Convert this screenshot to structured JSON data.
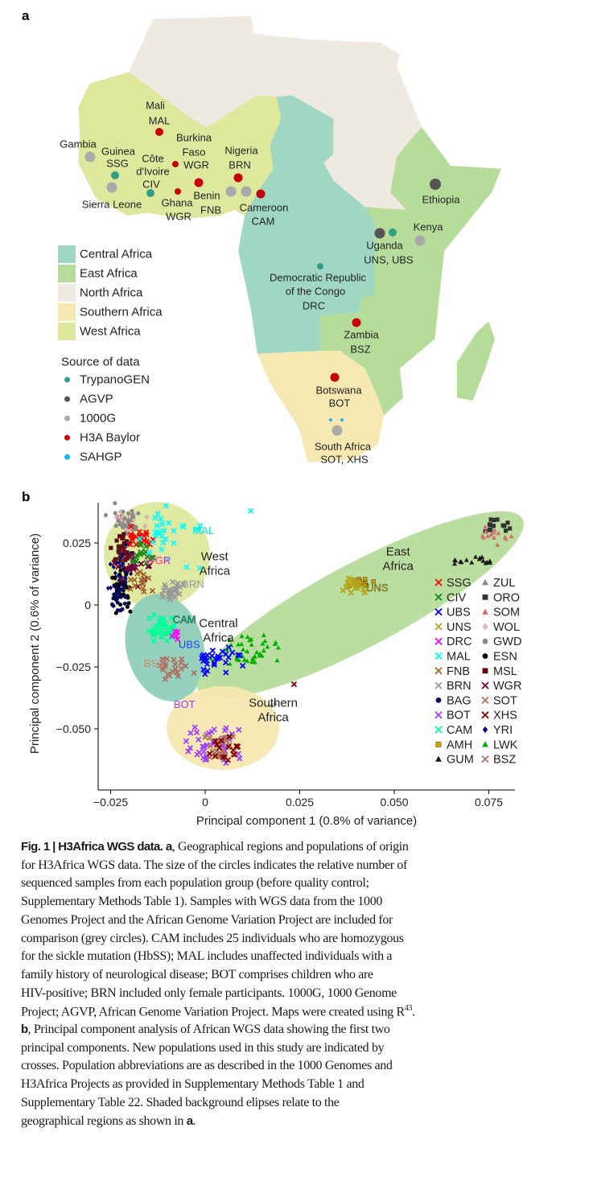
{
  "panel_a": {
    "label": "a",
    "map_labels": [
      "Mali",
      "MAL",
      "Burkina",
      "Faso",
      "WGR",
      "Nigeria",
      "BRN",
      "Gambia",
      "Guinea",
      "SSG",
      "Côte",
      "d'Ivoire",
      "CIV",
      "Sierra Leone",
      "Ghana",
      "WGR",
      "Benin",
      "FNB",
      "Cameroon",
      "CAM",
      "Ethiopia",
      "Kenya",
      "Uganda",
      "UNS, UBS",
      "Democratic Republic",
      "of the Congo",
      "DRC",
      "Zambia",
      "BSZ",
      "Botswana",
      "BOT",
      "South Africa",
      "SOT, XHS"
    ],
    "regions": [
      {
        "label": "Central Africa",
        "color": "#9fd7c3"
      },
      {
        "label": "East Africa",
        "color": "#b6dc9a"
      },
      {
        "label": "North Africa",
        "color": "#eeeae1"
      },
      {
        "label": "Southern Africa",
        "color": "#f5e8b1"
      },
      {
        "label": "West Africa",
        "color": "#dee89c"
      }
    ],
    "source_title": "Source of data",
    "sources": [
      {
        "label": "TrypanoGEN",
        "color": "#2e9e86"
      },
      {
        "label": "AGVP",
        "color": "#555555"
      },
      {
        "label": "1000G",
        "color": "#a9a9a9"
      },
      {
        "label": "H3A Baylor",
        "color": "#c8000a"
      },
      {
        "label": "SAHGP",
        "color": "#19b4f0"
      }
    ]
  },
  "panel_b": {
    "label": "b",
    "chart_data": {
      "type": "scatter",
      "xlabel": "Principal component 1 (0.8% of variance)",
      "ylabel": "Principal component 2 (0.6% of variance)",
      "xlim": [
        -0.028,
        0.083
      ],
      "ylim": [
        -0.072,
        0.04
      ],
      "xticks": [
        {
          "v": -0.025,
          "t": "−0.025"
        },
        {
          "v": 0,
          "t": "0"
        },
        {
          "v": 0.025,
          "t": "0.025"
        },
        {
          "v": 0.05,
          "t": "0.050"
        },
        {
          "v": 0.075,
          "t": "0.075"
        }
      ],
      "yticks": [
        {
          "v": 0.025,
          "t": "0.025"
        },
        {
          "v": 0,
          "t": "0"
        },
        {
          "v": -0.025,
          "t": "−0.025"
        },
        {
          "v": -0.05,
          "t": "−0.050"
        }
      ],
      "grid": false,
      "legend_position": "right",
      "region_labels": [
        {
          "lines": [
            "West",
            "Africa"
          ],
          "x": 0.0025,
          "y": 0.018,
          "color": "#a8d878"
        },
        {
          "lines": [
            "East",
            "Africa"
          ],
          "x": 0.051,
          "y": 0.02,
          "color": "#a8d878"
        },
        {
          "lines": [
            "Central",
            "Africa"
          ],
          "x": 0.0035,
          "y": -0.009,
          "color": "#7cc5b0"
        },
        {
          "lines": [
            "Southern",
            "Africa"
          ],
          "x": 0.018,
          "y": -0.041,
          "color": "#f3e39a"
        }
      ],
      "point_labels": [
        {
          "text": "MAL",
          "x": -0.0005,
          "y": 0.0285,
          "color": "#00e5e5"
        },
        {
          "text": "WGR",
          "x": -0.0125,
          "y": 0.0165,
          "color": "#ff2a9a"
        },
        {
          "text": "BRN",
          "x": -0.0032,
          "y": 0.007,
          "color": "#999999"
        },
        {
          "text": "CAM",
          "x": -0.0055,
          "y": -0.0073,
          "color": "#00d080"
        },
        {
          "text": "UBS",
          "x": -0.0042,
          "y": -0.0173,
          "color": "#2040ff"
        },
        {
          "text": "BSZ",
          "x": -0.0135,
          "y": -0.025,
          "color": "#c08a70"
        },
        {
          "text": "BOT",
          "x": -0.0055,
          "y": -0.0415,
          "color": "#a040ff"
        },
        {
          "text": "UNS",
          "x": 0.0455,
          "y": 0.0055,
          "color": "#d4c000"
        }
      ],
      "series": [
        {
          "name": "SSG",
          "marker": "x",
          "color": "#ff0000",
          "cx": -0.017,
          "cy": 0.027,
          "sx": 0.0018,
          "sy": 0.0018,
          "n": 22
        },
        {
          "name": "CIV",
          "marker": "x",
          "color": "#1a8a1a",
          "cx": -0.0165,
          "cy": 0.02,
          "sx": 0.0018,
          "sy": 0.002,
          "n": 16
        },
        {
          "name": "UBS",
          "marker": "x",
          "color": "#0000ff",
          "cx": 0.003,
          "cy": -0.022,
          "sx": 0.003,
          "sy": 0.0025,
          "n": 30
        },
        {
          "name": "UNS",
          "marker": "x",
          "color": "#b5a519",
          "cx": 0.04,
          "cy": 0.008,
          "sx": 0.0018,
          "sy": 0.0018,
          "n": 22
        },
        {
          "name": "DRC",
          "marker": "x",
          "color": "#ff00ff",
          "cx": -0.008,
          "cy": -0.013,
          "sx": 0.001,
          "sy": 0.0015,
          "n": 5
        },
        {
          "name": "MAL",
          "marker": "x",
          "color": "#00ffff",
          "cx": -0.01,
          "cy": 0.027,
          "sx": 0.004,
          "sy": 0.006,
          "n": 28
        },
        {
          "name": "FNB",
          "marker": "x",
          "color": "#a0652a",
          "cx": -0.017,
          "cy": 0.01,
          "sx": 0.0018,
          "sy": 0.003,
          "n": 15
        },
        {
          "name": "BRN",
          "marker": "x",
          "color": "#999999",
          "cx": -0.0095,
          "cy": 0.0055,
          "sx": 0.0015,
          "sy": 0.0018,
          "n": 26
        },
        {
          "name": "BAG",
          "marker": "circle",
          "color": "#0a0a5a",
          "cx": -0.0225,
          "cy": 0.002,
          "sx": 0.0012,
          "sy": 0.003,
          "n": 22
        },
        {
          "name": "BOT",
          "marker": "x",
          "color": "#a040ff",
          "cx": 0.003,
          "cy": -0.056,
          "sx": 0.004,
          "sy": 0.005,
          "n": 42
        },
        {
          "name": "CAM",
          "marker": "x",
          "color": "#00ff99",
          "cx": -0.012,
          "cy": -0.01,
          "sx": 0.002,
          "sy": 0.003,
          "n": 40
        },
        {
          "name": "AMH",
          "marker": "square",
          "color": "#c8a000",
          "cx": 0.0405,
          "cy": 0.009,
          "sx": 0.0018,
          "sy": 0.0012,
          "n": 16
        },
        {
          "name": "GUM",
          "marker": "triangle",
          "color": "#1a1a1a",
          "cx": 0.071,
          "cy": 0.018,
          "sx": 0.002,
          "sy": 0.001,
          "n": 16
        },
        {
          "name": "ZUL",
          "marker": "triangle",
          "color": "#888888",
          "cx": 0.019,
          "cy": -0.04,
          "sx": 0.0005,
          "sy": 0.0005,
          "n": 1
        },
        {
          "name": "ORO",
          "marker": "square",
          "color": "#333333",
          "cx": 0.077,
          "cy": 0.032,
          "sx": 0.0018,
          "sy": 0.0018,
          "n": 16
        },
        {
          "name": "SOM",
          "marker": "triangle",
          "color": "#d07070",
          "cx": 0.0765,
          "cy": 0.028,
          "sx": 0.002,
          "sy": 0.002,
          "n": 14
        },
        {
          "name": "WOL",
          "marker": "diamond",
          "color": "#f0b8b8",
          "cx": -0.02,
          "cy": 0.034,
          "sx": 0.002,
          "sy": 0.002,
          "n": 14
        },
        {
          "name": "GWD",
          "marker": "circle",
          "color": "#888888",
          "cx": -0.021,
          "cy": 0.033,
          "sx": 0.002,
          "sy": 0.0035,
          "n": 40
        },
        {
          "name": "ESN",
          "marker": "circle",
          "color": "#000000",
          "cx": -0.022,
          "cy": 0.006,
          "sx": 0.0014,
          "sy": 0.004,
          "n": 30
        },
        {
          "name": "MSL",
          "marker": "square",
          "color": "#700000",
          "cx": -0.0222,
          "cy": 0.022,
          "sx": 0.0014,
          "sy": 0.003,
          "n": 32
        },
        {
          "name": "WGR",
          "marker": "x",
          "color": "#700040",
          "cx": -0.019,
          "cy": 0.016,
          "sx": 0.002,
          "sy": 0.0035,
          "n": 22
        },
        {
          "name": "SOT",
          "marker": "x",
          "color": "#b07060",
          "cx": 0.004,
          "cy": -0.058,
          "sx": 0.002,
          "sy": 0.003,
          "n": 26
        },
        {
          "name": "XHS",
          "marker": "x",
          "color": "#800000",
          "cx": 0.006,
          "cy": -0.059,
          "sx": 0.003,
          "sy": 0.003,
          "n": 16
        },
        {
          "name": "YRI",
          "marker": "diamond",
          "color": "#000080",
          "cx": -0.022,
          "cy": 0.012,
          "sx": 0.0014,
          "sy": 0.005,
          "n": 40
        },
        {
          "name": "LWK",
          "marker": "triangle",
          "color": "#00b000",
          "cx": 0.012,
          "cy": -0.018,
          "sx": 0.0045,
          "sy": 0.003,
          "n": 40
        },
        {
          "name": "BSZ",
          "marker": "x",
          "color": "#b07060",
          "cx": -0.008,
          "cy": -0.026,
          "sx": 0.002,
          "sy": 0.003,
          "n": 22
        }
      ]
    }
  },
  "caption": [
    [
      {
        "t": "Fig. 1 | H3Africa WGS data. a",
        "b": true
      },
      {
        "t": ", Geographical regions and populations of origin"
      }
    ],
    [
      {
        "t": "for H3Africa WGS data. The size of the circles indicates the relative number of"
      }
    ],
    [
      {
        "t": "sequenced samples from each population group (before quality control;"
      }
    ],
    [
      {
        "t": "Supplementary Methods Table 1). Samples with WGS data from the 1000"
      }
    ],
    [
      {
        "t": "Genomes Project and the African Genome Variation Project are included for"
      }
    ],
    [
      {
        "t": "comparison (grey circles). CAM includes 25 individuals who are homozygous"
      }
    ],
    [
      {
        "t": "for the sickle mutation (HbSS); MAL includes unaffected individuals with a"
      }
    ],
    [
      {
        "t": "family history of neurological disease; BOT comprises children who are"
      }
    ],
    [
      {
        "t": "HIV-positive; BRN included only female participants. 1000G, 1000 Genome"
      }
    ],
    [
      {
        "t": "Project; AGVP, African Genome Variation Project. Maps were created using R"
      },
      {
        "t": "43",
        "sup": true
      },
      {
        "t": "."
      }
    ],
    [
      {
        "t": "b",
        "b": true
      },
      {
        "t": ", Principal component analysis of African WGS data showing the first two"
      }
    ],
    [
      {
        "t": "principal components. New populations used in this study are indicated by"
      }
    ],
    [
      {
        "t": "crosses. Population abbreviations are as described in the 1000 Genomes and"
      }
    ],
    [
      {
        "t": "H3Africa Projects as provided in Supplementary Methods Table 1 and"
      }
    ],
    [
      {
        "t": "Supplementary Table 22. Shaded background elipses relate to the"
      }
    ],
    [
      {
        "t": "geographical regions as shown in "
      },
      {
        "t": "a",
        "b": true
      },
      {
        "t": "."
      }
    ]
  ]
}
